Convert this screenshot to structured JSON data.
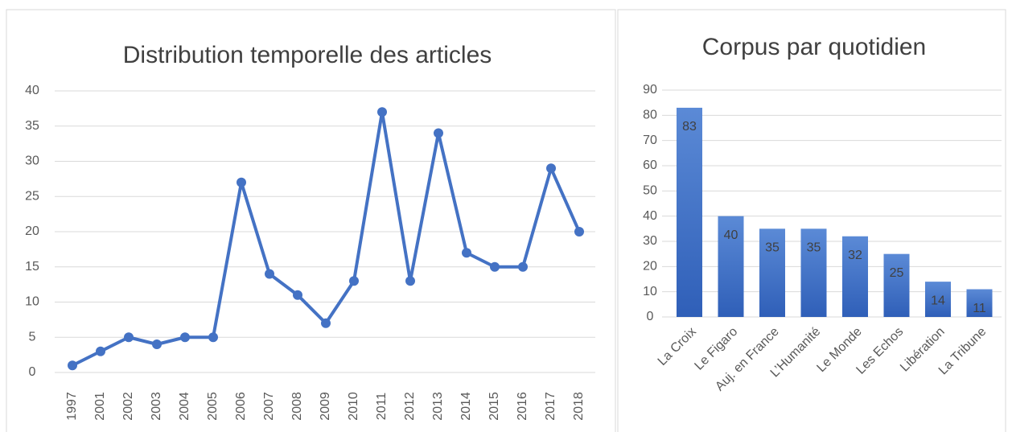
{
  "chart_data": [
    {
      "type": "line",
      "title": "Distribution temporelle des articles",
      "categories": [
        "1997",
        "2001",
        "2002",
        "2003",
        "2004",
        "2005",
        "2006",
        "2007",
        "2008",
        "2009",
        "2010",
        "2011",
        "2012",
        "2013",
        "2014",
        "2015",
        "2016",
        "2017",
        "2018"
      ],
      "values": [
        1,
        3,
        5,
        4,
        5,
        5,
        27,
        14,
        11,
        7,
        13,
        37,
        13,
        34,
        17,
        15,
        15,
        29,
        20
      ],
      "color": "#4472c4",
      "ylim": [
        0,
        40
      ],
      "yticks": [
        0,
        5,
        10,
        15,
        20,
        25,
        30,
        35,
        40
      ],
      "grid": true
    },
    {
      "type": "bar",
      "title": "Corpus par quotidien",
      "categories": [
        "La Croix",
        "Le Figaro",
        "Auj. en France",
        "L’Humanité",
        "Le Monde",
        "Les Echos",
        "Libération",
        "La Tribune"
      ],
      "values": [
        83,
        40,
        35,
        35,
        32,
        25,
        14,
        11
      ],
      "color": "#4472c4",
      "ylim": [
        0,
        90
      ],
      "yticks": [
        0,
        10,
        20,
        30,
        40,
        50,
        60,
        70,
        80,
        90
      ],
      "grid": true
    }
  ]
}
